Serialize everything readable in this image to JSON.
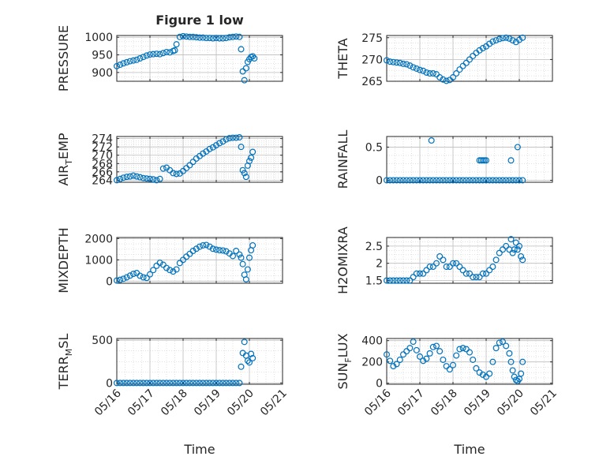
{
  "figure": {
    "title": "Figure 1 low",
    "xlabel": "Time",
    "marker_color": "#0072BD",
    "grid_color": "#d0d0d0",
    "axis_color": "#262626"
  },
  "chart_data": [
    {
      "type": "scatter",
      "ylabel": {
        "main": "PRESSURE",
        "sub": "",
        "tail": ""
      },
      "ylim": [
        875,
        1005
      ],
      "yticks": [
        900,
        950,
        1000
      ],
      "ytick_labels": [
        "900",
        "950",
        "1000"
      ],
      "xlim": [
        "05/16",
        "05/21"
      ],
      "xticks": [
        "05/16",
        "05/17",
        "05/18",
        "05/19",
        "05/20",
        "05/21"
      ],
      "show_xticklabels": false,
      "series": [
        {
          "x": [
            16.0,
            16.1,
            16.2,
            16.3,
            16.4,
            16.5,
            16.6,
            16.7,
            16.8,
            16.9,
            17.0,
            17.1,
            17.2,
            17.3,
            17.4,
            17.5,
            17.6,
            17.7,
            17.75,
            17.8,
            17.9,
            18.0,
            18.1,
            18.2,
            18.3,
            18.4,
            18.5,
            18.6,
            18.7,
            18.8,
            18.9,
            19.0,
            19.1,
            19.2,
            19.3,
            19.4,
            19.5,
            19.6,
            19.7,
            19.75,
            19.8,
            19.85,
            19.9,
            19.95,
            20.0,
            20.05,
            20.1,
            20.15
          ],
          "y": [
            918,
            922,
            926,
            929,
            932,
            934,
            936,
            940,
            944,
            948,
            951,
            952,
            953,
            952,
            955,
            958,
            957,
            961,
            963,
            980,
            1001,
            1003,
            1002,
            1001,
            1001,
            1000,
            999,
            999,
            998,
            998,
            997,
            998,
            997,
            997,
            998,
            1000,
            1001,
            1002,
            1001,
            966,
            903,
            878,
            912,
            930,
            938,
            944,
            946,
            940
          ]
        }
      ]
    },
    {
      "type": "scatter",
      "ylabel": {
        "main": "THETA",
        "sub": "",
        "tail": ""
      },
      "ylim": [
        265,
        275.5
      ],
      "yticks": [
        265,
        270,
        275
      ],
      "ytick_labels": [
        "265",
        "270",
        "275"
      ],
      "xlim": [
        "05/16",
        "05/21"
      ],
      "xticks": [
        "05/16",
        "05/17",
        "05/18",
        "05/19",
        "05/20",
        "05/21"
      ],
      "show_xticklabels": false,
      "series": [
        {
          "x": [
            16.0,
            16.1,
            16.2,
            16.3,
            16.4,
            16.5,
            16.6,
            16.7,
            16.8,
            16.9,
            17.0,
            17.1,
            17.2,
            17.3,
            17.4,
            17.5,
            17.6,
            17.7,
            17.8,
            17.9,
            18.0,
            18.1,
            18.2,
            18.3,
            18.4,
            18.5,
            18.6,
            18.7,
            18.8,
            18.9,
            19.0,
            19.1,
            19.2,
            19.3,
            19.4,
            19.5,
            19.6,
            19.7,
            19.8,
            19.9,
            20.0,
            20.1
          ],
          "y": [
            269.8,
            269.5,
            269.4,
            269.3,
            269.2,
            269.0,
            268.9,
            268.6,
            268.2,
            267.9,
            267.6,
            267.4,
            267.0,
            266.8,
            266.8,
            266.6,
            265.9,
            265.4,
            265.1,
            265.3,
            265.9,
            266.8,
            267.7,
            268.5,
            269.2,
            270.0,
            270.8,
            271.5,
            272.1,
            272.6,
            273.0,
            273.6,
            274.1,
            274.4,
            274.7,
            274.9,
            275.0,
            274.8,
            274.4,
            274.0,
            274.5,
            275.0
          ]
        }
      ]
    },
    {
      "type": "scatter",
      "ylabel": {
        "main": "AIR",
        "sub": "T",
        "tail": "EMP"
      },
      "ylim": [
        263.5,
        274.5
      ],
      "yticks": [
        264,
        266,
        268,
        270,
        272,
        274
      ],
      "ytick_labels": [
        "264",
        "266",
        "268",
        "270",
        "272",
        "274"
      ],
      "xlim": [
        "05/16",
        "05/21"
      ],
      "xticks": [
        "05/16",
        "05/17",
        "05/18",
        "05/19",
        "05/20",
        "05/21"
      ],
      "show_xticklabels": false,
      "series": [
        {
          "x": [
            16.0,
            16.1,
            16.2,
            16.3,
            16.4,
            16.5,
            16.6,
            16.7,
            16.8,
            16.9,
            17.0,
            17.1,
            17.2,
            17.3,
            17.4,
            17.5,
            17.6,
            17.7,
            17.8,
            17.9,
            18.0,
            18.1,
            18.2,
            18.3,
            18.4,
            18.5,
            18.6,
            18.7,
            18.8,
            18.9,
            19.0,
            19.1,
            19.2,
            19.3,
            19.4,
            19.5,
            19.6,
            19.7,
            19.75,
            19.8,
            19.85,
            19.9,
            19.95,
            20.0,
            20.05,
            20.1
          ],
          "y": [
            264.0,
            264.3,
            264.6,
            264.8,
            264.9,
            265.1,
            264.9,
            264.7,
            264.5,
            264.4,
            264.3,
            264.2,
            264.0,
            264.3,
            266.8,
            267.0,
            266.4,
            265.7,
            265.5,
            265.6,
            266.2,
            266.9,
            267.6,
            268.4,
            269.2,
            269.8,
            270.4,
            270.9,
            271.5,
            271.9,
            272.4,
            272.9,
            273.3,
            273.8,
            274.1,
            274.2,
            274.2,
            274.3,
            272.0,
            266.4,
            265.7,
            264.8,
            267.5,
            268.6,
            269.4,
            270.8
          ]
        }
      ]
    },
    {
      "type": "scatter",
      "ylabel": {
        "main": "RAINFALL",
        "sub": "",
        "tail": ""
      },
      "ylim": [
        -0.03,
        0.66
      ],
      "yticks": [
        0,
        0.5
      ],
      "ytick_labels": [
        "0",
        "0.5"
      ],
      "xlim": [
        "05/16",
        "05/21"
      ],
      "xticks": [
        "05/16",
        "05/17",
        "05/18",
        "05/19",
        "05/20",
        "05/21"
      ],
      "show_xticklabels": false,
      "series": [
        {
          "x": [
            16.0,
            16.1,
            16.2,
            16.3,
            16.4,
            16.5,
            16.6,
            16.7,
            16.8,
            16.9,
            17.0,
            17.1,
            17.2,
            17.3,
            17.4,
            17.5,
            17.6,
            17.7,
            17.8,
            17.9,
            18.0,
            18.1,
            18.2,
            18.3,
            18.4,
            18.5,
            18.6,
            18.7,
            18.8,
            18.9,
            19.0,
            19.1,
            19.2,
            19.3,
            19.4,
            19.5,
            19.6,
            19.7,
            19.8,
            19.9,
            20.0,
            20.1,
            17.35,
            18.8,
            18.85,
            18.9,
            18.95,
            19.0,
            19.75,
            19.95
          ],
          "y": [
            0,
            0,
            0,
            0,
            0,
            0,
            0,
            0,
            0,
            0,
            0,
            0,
            0,
            0,
            0,
            0,
            0,
            0,
            0,
            0,
            0,
            0,
            0,
            0,
            0,
            0,
            0,
            0,
            0,
            0,
            0,
            0,
            0,
            0,
            0,
            0,
            0,
            0,
            0,
            0,
            0,
            0,
            0.6,
            0.3,
            0.3,
            0.3,
            0.3,
            0.3,
            0.3,
            0.5
          ]
        }
      ]
    },
    {
      "type": "scatter",
      "ylabel": {
        "main": "MIXDEPTH",
        "sub": "",
        "tail": ""
      },
      "ylim": [
        -100,
        2050
      ],
      "yticks": [
        0,
        1000,
        2000
      ],
      "ytick_labels": [
        "0",
        "1000",
        "2000"
      ],
      "xlim": [
        "05/16",
        "05/21"
      ],
      "xticks": [
        "05/16",
        "05/17",
        "05/18",
        "05/19",
        "05/20",
        "05/21"
      ],
      "show_xticklabels": false,
      "series": [
        {
          "x": [
            16.0,
            16.1,
            16.2,
            16.3,
            16.4,
            16.5,
            16.6,
            16.7,
            16.8,
            16.9,
            17.0,
            17.1,
            17.2,
            17.3,
            17.4,
            17.5,
            17.6,
            17.7,
            17.8,
            17.9,
            18.0,
            18.1,
            18.2,
            18.3,
            18.4,
            18.5,
            18.6,
            18.7,
            18.8,
            18.9,
            19.0,
            19.1,
            19.2,
            19.3,
            19.4,
            19.5,
            19.6,
            19.7,
            19.75,
            19.8,
            19.85,
            19.9,
            19.95,
            20.0,
            20.05,
            20.1
          ],
          "y": [
            30,
            60,
            110,
            180,
            260,
            340,
            380,
            250,
            180,
            150,
            320,
            520,
            720,
            860,
            770,
            620,
            520,
            450,
            550,
            850,
            1000,
            1150,
            1280,
            1420,
            1520,
            1620,
            1680,
            1700,
            1620,
            1520,
            1480,
            1450,
            1440,
            1400,
            1300,
            1180,
            1420,
            1250,
            1100,
            800,
            300,
            80,
            550,
            1100,
            1450,
            1680
          ]
        }
      ]
    },
    {
      "type": "scatter",
      "ylabel": {
        "main": "H2OMIXRA",
        "sub": "",
        "tail": ""
      },
      "ylim": [
        1.42,
        2.75
      ],
      "yticks": [
        1.5,
        2,
        2.5
      ],
      "ytick_labels": [
        "1.5",
        "2",
        "2.5"
      ],
      "xlim": [
        "05/16",
        "05/21"
      ],
      "xticks": [
        "05/16",
        "05/17",
        "05/18",
        "05/19",
        "05/20",
        "05/21"
      ],
      "show_xticklabels": false,
      "series": [
        {
          "x": [
            16.0,
            16.1,
            16.2,
            16.3,
            16.4,
            16.5,
            16.6,
            16.7,
            16.8,
            16.9,
            17.0,
            17.1,
            17.2,
            17.3,
            17.4,
            17.5,
            17.6,
            17.7,
            17.8,
            17.9,
            18.0,
            18.1,
            18.2,
            18.3,
            18.4,
            18.5,
            18.6,
            18.7,
            18.8,
            18.9,
            19.0,
            19.1,
            19.2,
            19.3,
            19.4,
            19.5,
            19.6,
            19.7,
            19.75,
            19.8,
            19.85,
            19.9,
            19.95,
            20.0,
            20.05,
            20.1
          ],
          "y": [
            1.5,
            1.5,
            1.5,
            1.5,
            1.5,
            1.5,
            1.5,
            1.5,
            1.6,
            1.7,
            1.7,
            1.7,
            1.8,
            1.9,
            1.9,
            2.0,
            2.2,
            2.1,
            1.9,
            1.9,
            2.0,
            2.0,
            1.9,
            1.8,
            1.7,
            1.7,
            1.6,
            1.6,
            1.6,
            1.7,
            1.7,
            1.8,
            1.9,
            2.1,
            2.3,
            2.4,
            2.5,
            2.4,
            2.7,
            2.3,
            2.4,
            2.6,
            2.4,
            2.5,
            2.2,
            2.1
          ]
        }
      ]
    },
    {
      "type": "scatter",
      "ylabel": {
        "main": "TERR",
        "sub": "M",
        "tail": "SL"
      },
      "ylim": [
        -15,
        520
      ],
      "yticks": [
        0,
        500
      ],
      "ytick_labels": [
        "0",
        "500"
      ],
      "xlim": [
        "05/16",
        "05/21"
      ],
      "xticks": [
        "05/16",
        "05/17",
        "05/18",
        "05/19",
        "05/20",
        "05/21"
      ],
      "xtick_labels": [
        "05/16",
        "05/17",
        "05/18",
        "05/19",
        "05/20",
        "05/21"
      ],
      "show_xticklabels": true,
      "series": [
        {
          "x": [
            16.0,
            16.1,
            16.2,
            16.3,
            16.4,
            16.5,
            16.6,
            16.7,
            16.8,
            16.9,
            17.0,
            17.1,
            17.2,
            17.3,
            17.4,
            17.5,
            17.6,
            17.7,
            17.8,
            17.9,
            18.0,
            18.1,
            18.2,
            18.3,
            18.4,
            18.5,
            18.6,
            18.7,
            18.8,
            18.9,
            19.0,
            19.1,
            19.2,
            19.3,
            19.4,
            19.5,
            19.6,
            19.7,
            19.75,
            19.8,
            19.85,
            19.9,
            19.95,
            20.0,
            20.05,
            20.1
          ],
          "y": [
            0,
            0,
            0,
            0,
            0,
            0,
            0,
            0,
            0,
            0,
            0,
            0,
            0,
            0,
            0,
            0,
            0,
            0,
            0,
            0,
            0,
            0,
            0,
            0,
            0,
            0,
            0,
            0,
            0,
            0,
            0,
            0,
            0,
            0,
            0,
            0,
            0,
            0,
            190,
            350,
            480,
            320,
            260,
            240,
            340,
            290
          ]
        }
      ]
    },
    {
      "type": "scatter",
      "ylabel": {
        "main": "SUN",
        "sub": "F",
        "tail": "LUX"
      },
      "ylim": [
        -10,
        420
      ],
      "yticks": [
        0,
        200,
        400
      ],
      "ytick_labels": [
        "0",
        "200",
        "400"
      ],
      "xlim": [
        "05/16",
        "05/21"
      ],
      "xticks": [
        "05/16",
        "05/17",
        "05/18",
        "05/19",
        "05/20",
        "05/21"
      ],
      "xtick_labels": [
        "05/16",
        "05/17",
        "05/18",
        "05/19",
        "05/20",
        "05/21"
      ],
      "show_xticklabels": true,
      "series": [
        {
          "x": [
            16.0,
            16.1,
            16.2,
            16.3,
            16.4,
            16.5,
            16.6,
            16.7,
            16.8,
            16.9,
            17.0,
            17.1,
            17.2,
            17.3,
            17.4,
            17.5,
            17.6,
            17.7,
            17.8,
            17.9,
            18.0,
            18.1,
            18.2,
            18.3,
            18.4,
            18.5,
            18.6,
            18.7,
            18.8,
            18.9,
            19.0,
            19.1,
            19.2,
            19.3,
            19.4,
            19.5,
            19.6,
            19.7,
            19.75,
            19.8,
            19.85,
            19.9,
            19.95,
            20.0,
            20.05,
            20.1
          ],
          "y": [
            270,
            210,
            160,
            180,
            220,
            270,
            300,
            330,
            390,
            310,
            250,
            210,
            230,
            280,
            340,
            350,
            300,
            220,
            160,
            130,
            170,
            260,
            320,
            330,
            320,
            290,
            220,
            140,
            100,
            80,
            60,
            90,
            200,
            330,
            380,
            390,
            350,
            280,
            200,
            120,
            60,
            30,
            20,
            40,
            90,
            200
          ]
        }
      ]
    }
  ]
}
